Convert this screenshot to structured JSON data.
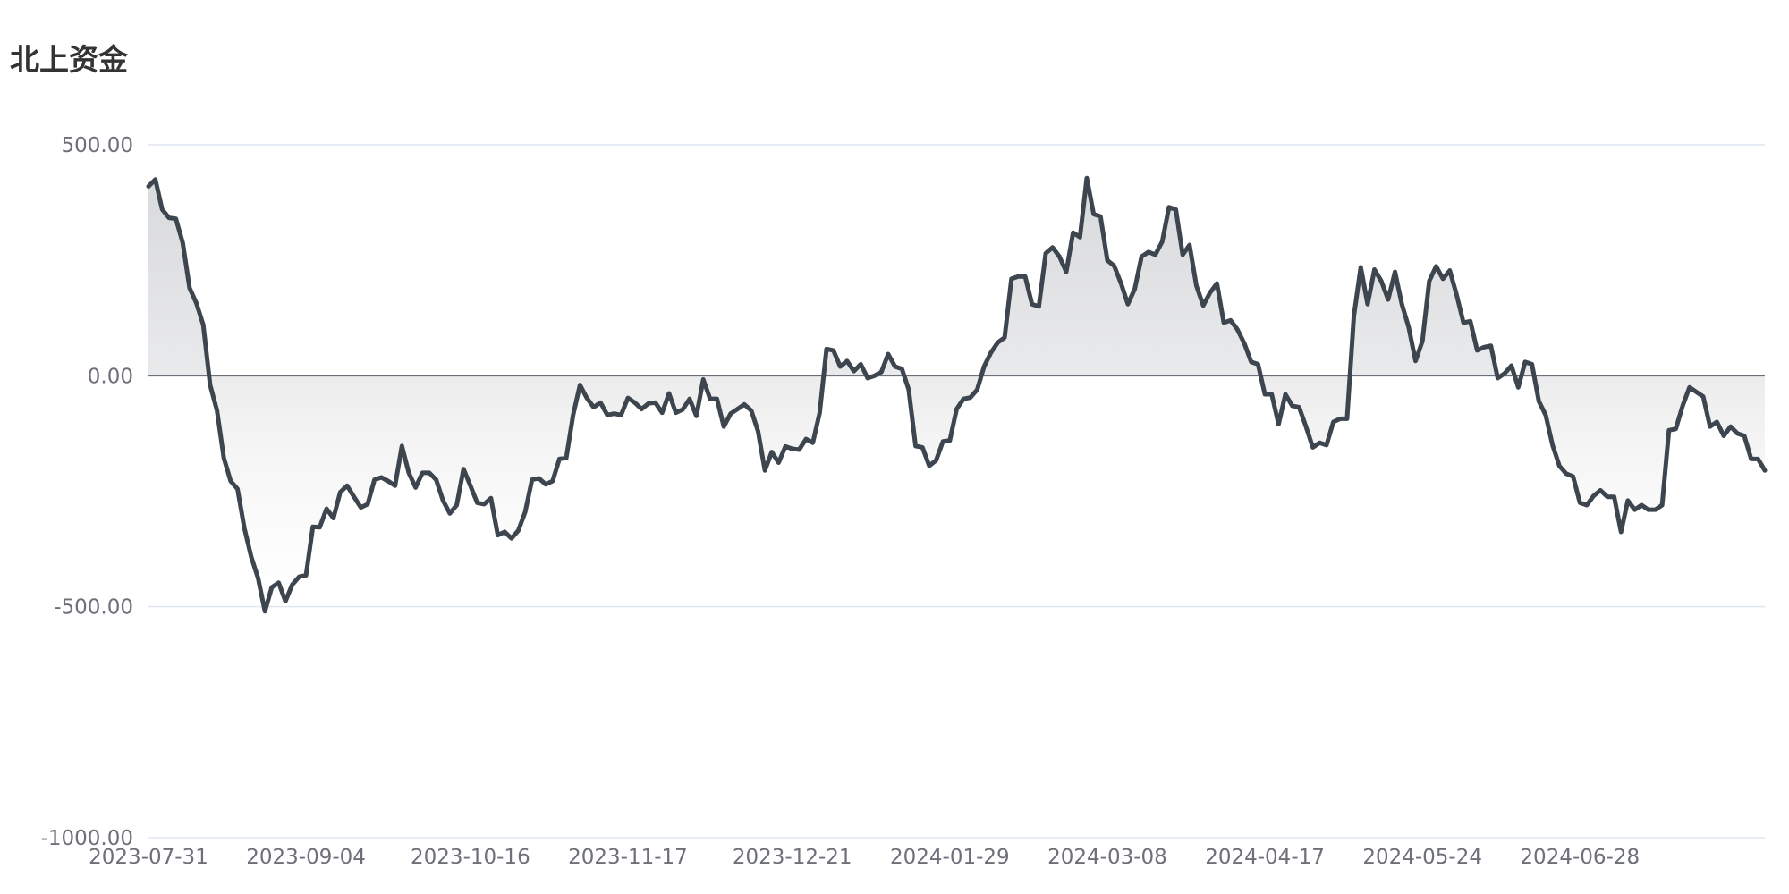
{
  "chart_data": {
    "type": "area",
    "title": "北上资金",
    "xlabel": "",
    "ylabel": "",
    "ylim": [
      -1000,
      500
    ],
    "y_ticks": [
      "500.00",
      "0.00",
      "-500.00",
      "-1000.00"
    ],
    "y_tick_values": [
      500,
      0,
      -500,
      -1000
    ],
    "x_tick_labels": [
      "2023-07-31",
      "2023-09-04",
      "2023-10-16",
      "2023-11-17",
      "2023-12-21",
      "2024-01-29",
      "2024-03-08",
      "2024-04-17",
      "2024-05-24",
      "2024-06-28"
    ],
    "x_tick_index": [
      0,
      23,
      47,
      70,
      94,
      117,
      140,
      163,
      186,
      209
    ],
    "grid": true,
    "legend": "none",
    "colors": {
      "line": "#3d464f",
      "area_top": "#c8cacd",
      "area_bottom": "#ffffff",
      "grid": "#e0e6f1",
      "zero_line": "#6e7079"
    },
    "values": [
      410,
      425,
      360,
      342,
      340,
      288,
      190,
      157,
      110,
      -20,
      -75,
      -178,
      -228,
      -245,
      -330,
      -392,
      -438,
      -510,
      -458,
      -448,
      -488,
      -452,
      -435,
      -432,
      -327,
      -328,
      -288,
      -308,
      -252,
      -238,
      -262,
      -285,
      -278,
      -225,
      -220,
      -228,
      -238,
      -152,
      -210,
      -242,
      -210,
      -210,
      -225,
      -270,
      -298,
      -280,
      -202,
      -238,
      -275,
      -278,
      -265,
      -345,
      -338,
      -352,
      -335,
      -295,
      -225,
      -222,
      -235,
      -228,
      -180,
      -178,
      -85,
      -20,
      -48,
      -68,
      -58,
      -85,
      -82,
      -85,
      -48,
      -58,
      -72,
      -60,
      -58,
      -80,
      -38,
      -80,
      -73,
      -50,
      -87,
      -8,
      -50,
      -50,
      -110,
      -82,
      -72,
      -62,
      -75,
      -120,
      -205,
      -165,
      -188,
      -153,
      -158,
      -160,
      -137,
      -145,
      -80,
      58,
      55,
      20,
      32,
      10,
      25,
      -5,
      0,
      8,
      47,
      20,
      15,
      -30,
      -152,
      -155,
      -195,
      -183,
      -142,
      -140,
      -72,
      -50,
      -47,
      -30,
      20,
      50,
      72,
      83,
      210,
      215,
      215,
      155,
      150,
      265,
      278,
      258,
      225,
      310,
      300,
      428,
      350,
      345,
      250,
      238,
      200,
      155,
      188,
      258,
      268,
      262,
      290,
      365,
      360,
      262,
      283,
      195,
      152,
      180,
      200,
      115,
      120,
      100,
      70,
      30,
      25,
      -40,
      -40,
      -105,
      -40,
      -65,
      -68,
      -110,
      -155,
      -145,
      -150,
      -100,
      -93,
      -93,
      130,
      235,
      155,
      230,
      205,
      165,
      225,
      155,
      105,
      32,
      75,
      205,
      237,
      210,
      228,
      175,
      115,
      118,
      55,
      62,
      65,
      -5,
      5,
      22,
      -25,
      30,
      25,
      -55,
      -85,
      -150,
      -195,
      -212,
      -218,
      -275,
      -280,
      -260,
      -248,
      -262,
      -262,
      -338,
      -270,
      -290,
      -280,
      -290,
      -290,
      -280,
      -118,
      -115,
      -65,
      -25,
      -35,
      -45,
      -110,
      -100,
      -130,
      -110,
      -125,
      -130,
      -180,
      -180,
      -205
    ]
  }
}
